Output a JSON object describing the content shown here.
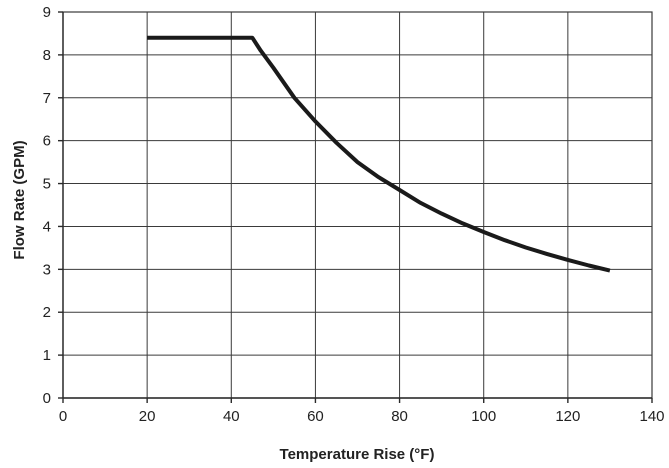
{
  "chart_data": {
    "type": "line",
    "title": "",
    "xlabel": "Temperature Rise (°F)",
    "ylabel": "Flow Rate (GPM)",
    "xlim": [
      0,
      140
    ],
    "ylim": [
      0,
      9
    ],
    "xticks": [
      "0",
      "20",
      "40",
      "60",
      "80",
      "100",
      "120",
      "140"
    ],
    "yticks": [
      "0",
      "1",
      "2",
      "3",
      "4",
      "5",
      "6",
      "7",
      "8",
      "9"
    ],
    "grid": true,
    "legend": "none",
    "series": [
      {
        "color": "#1a1a1a",
        "x": [
          20,
          45,
          47,
          50,
          55,
          60,
          65,
          70,
          75,
          80,
          85,
          90,
          95,
          100,
          105,
          110,
          115,
          120,
          125,
          130
        ],
        "y": [
          8.4,
          8.4,
          8.1,
          7.7,
          7.0,
          6.45,
          5.95,
          5.5,
          5.15,
          4.85,
          4.55,
          4.3,
          4.07,
          3.87,
          3.68,
          3.51,
          3.36,
          3.22,
          3.09,
          2.97
        ]
      }
    ]
  }
}
